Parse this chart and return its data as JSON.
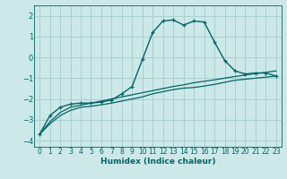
{
  "xlabel": "Humidex (Indice chaleur)",
  "ylabel": "",
  "background_color": "#cce8e8",
  "grid_color": "#aacfcf",
  "line_color": "#006666",
  "xlim": [
    -0.5,
    23.5
  ],
  "ylim": [
    -4.3,
    2.5
  ],
  "xticks": [
    0,
    1,
    2,
    3,
    4,
    5,
    6,
    7,
    8,
    9,
    10,
    11,
    12,
    13,
    14,
    15,
    16,
    17,
    18,
    19,
    20,
    21,
    22,
    23
  ],
  "yticks": [
    -4,
    -3,
    -2,
    -1,
    0,
    1,
    2
  ],
  "curve1_x": [
    0,
    1,
    2,
    3,
    4,
    5,
    6,
    7,
    8,
    9,
    10,
    11,
    12,
    13,
    14,
    15,
    16,
    17,
    18,
    19,
    20,
    21,
    22,
    23
  ],
  "curve1_y": [
    -3.7,
    -2.8,
    -2.4,
    -2.25,
    -2.2,
    -2.2,
    -2.15,
    -2.05,
    -1.75,
    -1.4,
    -0.1,
    1.2,
    1.75,
    1.8,
    1.55,
    1.75,
    1.7,
    0.75,
    -0.15,
    -0.65,
    -0.8,
    -0.75,
    -0.75,
    -0.9
  ],
  "curve2_x": [
    0,
    1,
    2,
    3,
    4,
    5,
    6,
    7,
    8,
    9,
    10,
    11,
    12,
    13,
    14,
    15,
    16,
    17,
    18,
    19,
    20,
    21,
    22,
    23
  ],
  "curve2_y": [
    -3.7,
    -3.2,
    -2.8,
    -2.55,
    -2.4,
    -2.35,
    -2.28,
    -2.2,
    -2.1,
    -2.0,
    -1.9,
    -1.75,
    -1.65,
    -1.55,
    -1.48,
    -1.45,
    -1.38,
    -1.3,
    -1.2,
    -1.1,
    -1.05,
    -1.0,
    -0.95,
    -0.9
  ],
  "curve3_x": [
    0,
    1,
    2,
    3,
    4,
    5,
    6,
    7,
    8,
    9,
    10,
    11,
    12,
    13,
    14,
    15,
    16,
    17,
    18,
    19,
    20,
    21,
    22,
    23
  ],
  "curve3_y": [
    -3.7,
    -3.1,
    -2.65,
    -2.4,
    -2.3,
    -2.2,
    -2.1,
    -2.0,
    -1.9,
    -1.8,
    -1.7,
    -1.6,
    -1.5,
    -1.4,
    -1.32,
    -1.22,
    -1.15,
    -1.08,
    -1.0,
    -0.92,
    -0.85,
    -0.78,
    -0.72,
    -0.65
  ]
}
